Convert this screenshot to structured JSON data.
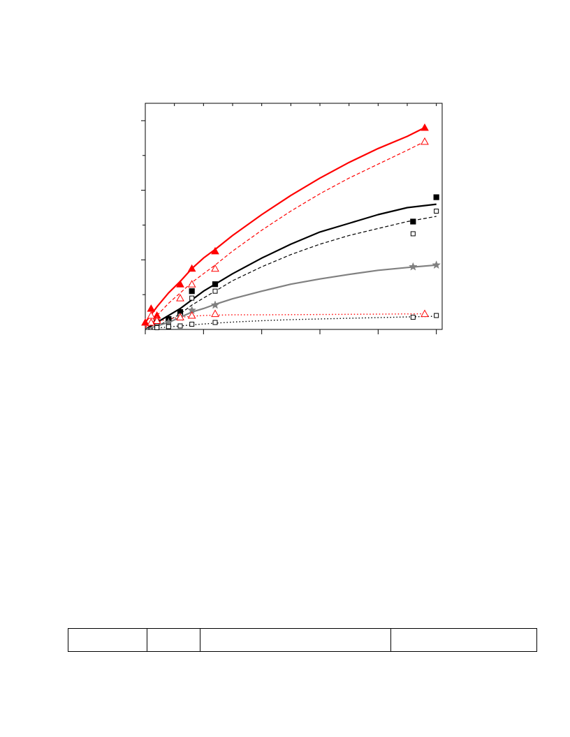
{
  "chart_data": {
    "type": "scatter",
    "title": "",
    "xlabel": "",
    "ylabel": "",
    "xlim": [
      0,
      10.2
    ],
    "ylim": [
      0,
      6.5
    ],
    "x_major_ticks": [
      0,
      2,
      4,
      6,
      8,
      10
    ],
    "x_minor_ticks": [
      1,
      3,
      5,
      7,
      9
    ],
    "y_major_ticks": [
      2,
      4,
      6
    ],
    "y_minor_ticks": [
      1,
      3,
      5
    ],
    "grid": false,
    "legend": "none",
    "series": [
      {
        "color": "#ff0000",
        "marker": "filled-triangle",
        "line": "solid",
        "points": [
          [
            0,
            0.2
          ],
          [
            0.2,
            0.6
          ],
          [
            0.4,
            0.4
          ],
          [
            1.2,
            1.3
          ],
          [
            1.6,
            1.75
          ],
          [
            2.4,
            2.25
          ],
          [
            9.6,
            5.8
          ]
        ],
        "fit": [
          [
            0,
            0.2
          ],
          [
            0.4,
            0.65
          ],
          [
            0.8,
            1.05
          ],
          [
            1.2,
            1.38
          ],
          [
            1.6,
            1.75
          ],
          [
            2.0,
            2.05
          ],
          [
            2.4,
            2.3
          ],
          [
            3.0,
            2.7
          ],
          [
            4.0,
            3.3
          ],
          [
            5.0,
            3.85
          ],
          [
            6.0,
            4.35
          ],
          [
            7.0,
            4.8
          ],
          [
            8.0,
            5.2
          ],
          [
            9.0,
            5.55
          ],
          [
            9.6,
            5.8
          ]
        ]
      },
      {
        "color": "#ff0000",
        "marker": "open-triangle",
        "line": "dashed",
        "points": [
          [
            0.2,
            0.4
          ],
          [
            0.4,
            0.3
          ],
          [
            1.2,
            0.9
          ],
          [
            1.6,
            1.3
          ],
          [
            2.4,
            1.75
          ],
          [
            9.6,
            5.4
          ]
        ],
        "fit": [
          [
            0,
            0.05
          ],
          [
            0.4,
            0.4
          ],
          [
            0.8,
            0.75
          ],
          [
            1.2,
            1.05
          ],
          [
            1.6,
            1.35
          ],
          [
            2.0,
            1.6
          ],
          [
            2.4,
            1.85
          ],
          [
            3.0,
            2.25
          ],
          [
            4.0,
            2.85
          ],
          [
            5.0,
            3.4
          ],
          [
            6.0,
            3.9
          ],
          [
            7.0,
            4.35
          ],
          [
            8.0,
            4.75
          ],
          [
            9.0,
            5.15
          ],
          [
            9.6,
            5.4
          ]
        ]
      },
      {
        "color": "#000000",
        "marker": "filled-square",
        "line": "solid",
        "points": [
          [
            0.4,
            0.2
          ],
          [
            0.8,
            0.3
          ],
          [
            1.2,
            0.5
          ],
          [
            1.6,
            1.1
          ],
          [
            2.4,
            1.3
          ],
          [
            9.2,
            3.1
          ],
          [
            10.0,
            3.8
          ]
        ],
        "fit": [
          [
            0,
            0.0
          ],
          [
            0.4,
            0.2
          ],
          [
            0.8,
            0.4
          ],
          [
            1.2,
            0.6
          ],
          [
            1.6,
            0.85
          ],
          [
            2.0,
            1.1
          ],
          [
            2.4,
            1.3
          ],
          [
            3.0,
            1.6
          ],
          [
            4.0,
            2.05
          ],
          [
            5.0,
            2.45
          ],
          [
            6.0,
            2.8
          ],
          [
            7.0,
            3.05
          ],
          [
            8.0,
            3.3
          ],
          [
            9.0,
            3.5
          ],
          [
            10.0,
            3.6
          ]
        ]
      },
      {
        "color": "#000000",
        "marker": "open-square",
        "line": "dashed",
        "points": [
          [
            0.4,
            0.1
          ],
          [
            0.8,
            0.2
          ],
          [
            1.2,
            0.4
          ],
          [
            1.6,
            0.9
          ],
          [
            2.4,
            1.1
          ],
          [
            9.2,
            2.75
          ],
          [
            10.0,
            3.4
          ]
        ],
        "fit": [
          [
            0,
            0.0
          ],
          [
            0.4,
            0.1
          ],
          [
            0.8,
            0.25
          ],
          [
            1.2,
            0.45
          ],
          [
            1.6,
            0.7
          ],
          [
            2.0,
            0.9
          ],
          [
            2.4,
            1.1
          ],
          [
            3.0,
            1.4
          ],
          [
            4.0,
            1.8
          ],
          [
            5.0,
            2.15
          ],
          [
            6.0,
            2.45
          ],
          [
            7.0,
            2.7
          ],
          [
            8.0,
            2.9
          ],
          [
            9.0,
            3.1
          ],
          [
            10.0,
            3.25
          ]
        ]
      },
      {
        "color": "#808080",
        "marker": "filled-star",
        "line": "solid",
        "points": [
          [
            0.4,
            0.1
          ],
          [
            0.8,
            0.2
          ],
          [
            1.2,
            0.35
          ],
          [
            1.6,
            0.55
          ],
          [
            2.4,
            0.7
          ],
          [
            9.2,
            1.8
          ],
          [
            10.0,
            1.85
          ]
        ],
        "fit": [
          [
            0,
            0.0
          ],
          [
            0.4,
            0.1
          ],
          [
            0.8,
            0.2
          ],
          [
            1.2,
            0.35
          ],
          [
            1.6,
            0.5
          ],
          [
            2.0,
            0.6
          ],
          [
            2.4,
            0.72
          ],
          [
            3.0,
            0.88
          ],
          [
            4.0,
            1.1
          ],
          [
            5.0,
            1.3
          ],
          [
            6.0,
            1.45
          ],
          [
            7.0,
            1.58
          ],
          [
            8.0,
            1.7
          ],
          [
            9.0,
            1.78
          ],
          [
            10.0,
            1.85
          ]
        ]
      },
      {
        "color": "#ff0000",
        "marker": "open-triangle",
        "line": "dotted",
        "points": [
          [
            0.2,
            0.2
          ],
          [
            0.4,
            0.25
          ],
          [
            1.2,
            0.35
          ],
          [
            1.6,
            0.4
          ],
          [
            2.4,
            0.45
          ],
          [
            9.6,
            0.45
          ]
        ],
        "fit": [
          [
            0,
            0.05
          ],
          [
            0.4,
            0.22
          ],
          [
            0.8,
            0.3
          ],
          [
            1.2,
            0.35
          ],
          [
            1.6,
            0.38
          ],
          [
            2.0,
            0.4
          ],
          [
            2.4,
            0.41
          ],
          [
            3.0,
            0.42
          ],
          [
            4.0,
            0.42
          ],
          [
            6.0,
            0.43
          ],
          [
            8.0,
            0.44
          ],
          [
            9.6,
            0.45
          ]
        ]
      },
      {
        "color": "#000000",
        "marker": "open-square",
        "line": "dotted",
        "points": [
          [
            0.4,
            0.05
          ],
          [
            0.8,
            0.08
          ],
          [
            1.2,
            0.1
          ],
          [
            1.6,
            0.15
          ],
          [
            2.4,
            0.2
          ],
          [
            9.2,
            0.35
          ],
          [
            10.0,
            0.4
          ]
        ],
        "fit": [
          [
            0,
            0.0
          ],
          [
            0.4,
            0.04
          ],
          [
            0.8,
            0.07
          ],
          [
            1.2,
            0.1
          ],
          [
            1.6,
            0.13
          ],
          [
            2.4,
            0.18
          ],
          [
            3.0,
            0.21
          ],
          [
            4.0,
            0.25
          ],
          [
            5.0,
            0.28
          ],
          [
            6.0,
            0.3
          ],
          [
            7.0,
            0.32
          ],
          [
            8.0,
            0.34
          ],
          [
            9.0,
            0.36
          ],
          [
            10.0,
            0.38
          ]
        ]
      }
    ]
  },
  "table": {
    "cells": [
      "",
      "",
      "",
      ""
    ]
  }
}
